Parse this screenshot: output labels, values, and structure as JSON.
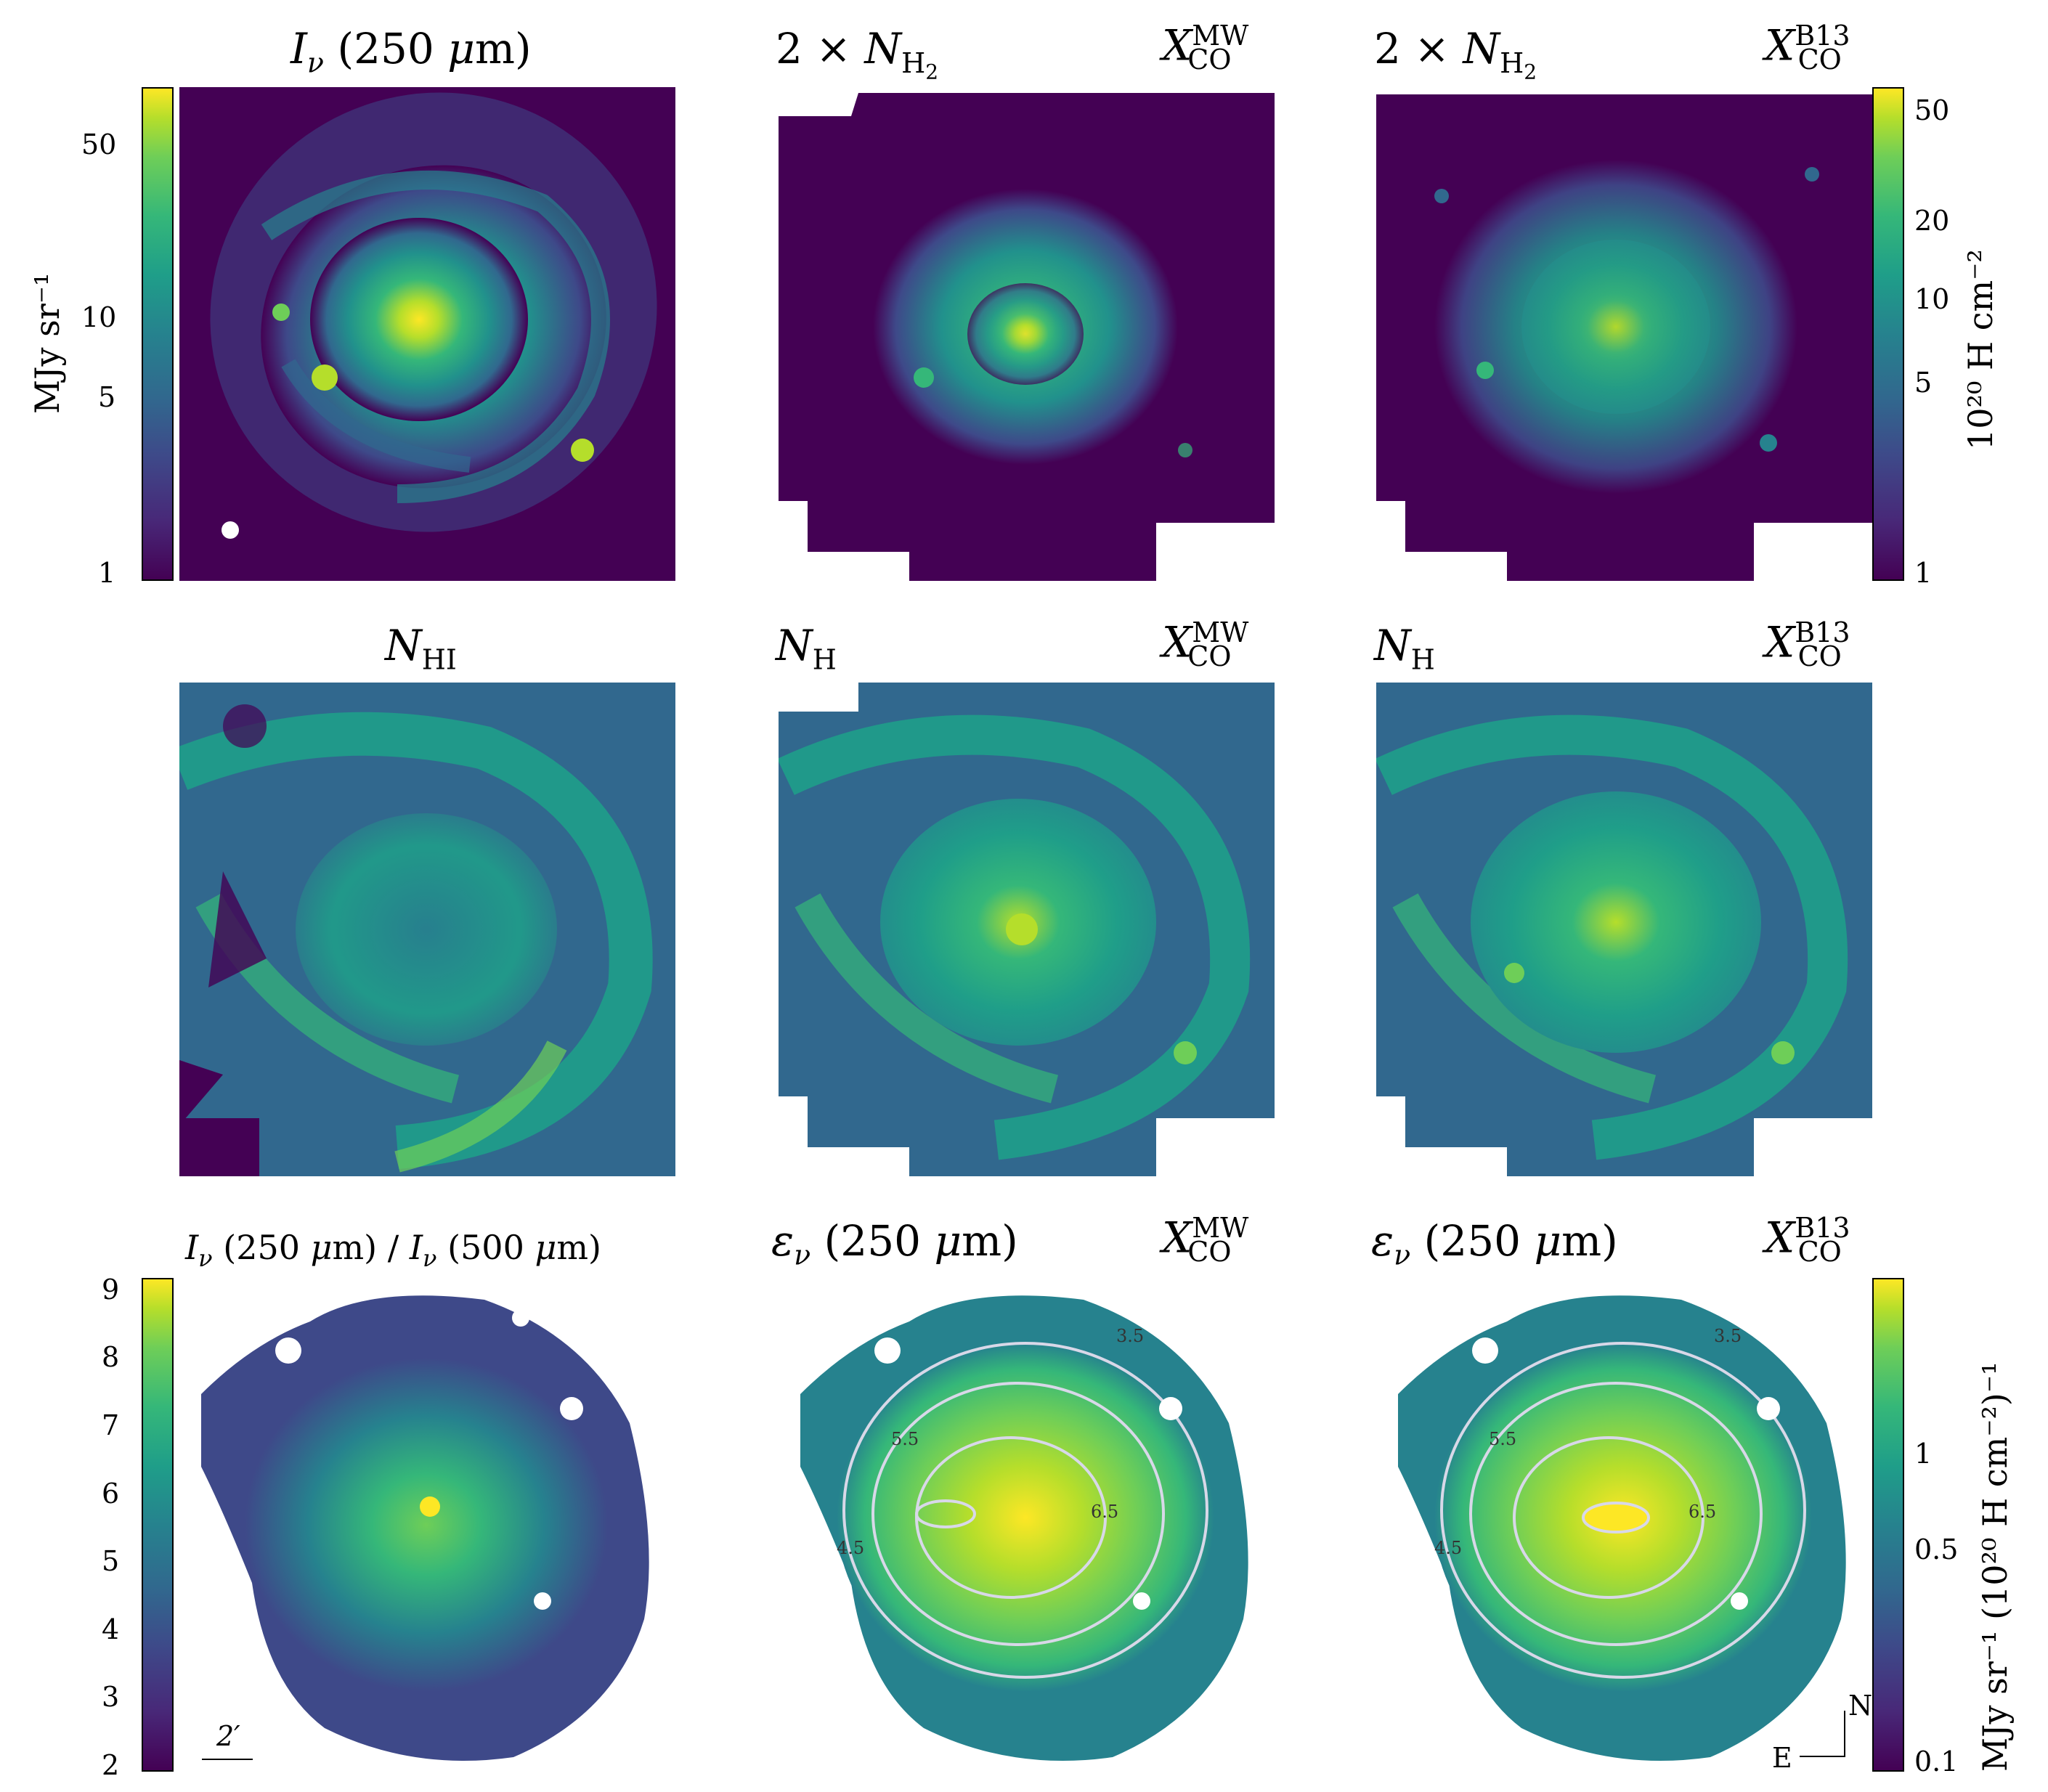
{
  "colors": {
    "viridis": [
      "#440154",
      "#482878",
      "#3e4989",
      "#31688e",
      "#26828e",
      "#1f9e89",
      "#35b779",
      "#6ece58",
      "#b5de2b",
      "#fde725"
    ],
    "background": "#440154",
    "contour": "#d8d8e8"
  },
  "row1": {
    "p1_title": "Iν (250 μm)",
    "p2_title": "2 × N",
    "p2_sub": "H₂",
    "p2_model": "X",
    "p2_model_sup": "MW",
    "p2_model_sub": "CO",
    "p3_title": "2 × N",
    "p3_sub": "H₂",
    "p3_model": "X",
    "p3_model_sup": "B13",
    "p3_model_sub": "CO"
  },
  "row2": {
    "p1_title": "N",
    "p1_sub": "HI",
    "p2_title": "N",
    "p2_sub": "H",
    "p2_model_sup": "MW",
    "p3_title": "N",
    "p3_sub": "H",
    "p3_model_sup": "B13"
  },
  "row3": {
    "p1_title": "Iν (250 μm) / Iν (500 μm)",
    "p2_title": "εν (250 μm)",
    "p3_title": "εν (250 μm)",
    "scale_bar": "2′",
    "compass_n": "N",
    "compass_e": "E"
  },
  "cbar_left_top": {
    "label": "MJy sr⁻¹",
    "ticks": [
      "50",
      "10",
      "5",
      "1"
    ]
  },
  "cbar_right_top": {
    "label": "10²⁰ H cm⁻²",
    "ticks": [
      "50",
      "20",
      "10",
      "5",
      "1"
    ]
  },
  "cbar_left_bottom": {
    "ticks": [
      "9",
      "8",
      "7",
      "6",
      "5",
      "4",
      "3",
      "2"
    ]
  },
  "cbar_right_bottom": {
    "label": "MJy sr⁻¹ (10²⁰ H cm⁻²)⁻¹",
    "ticks": [
      "1",
      "0.5",
      "0.1"
    ]
  },
  "contours": {
    "labels": [
      "3.5",
      "4.5",
      "5.5",
      "6.5",
      "3.5",
      "4.5",
      "5.5",
      "6.5"
    ]
  },
  "chart_data": {
    "type": "heatmap",
    "panels": [
      {
        "title": "Iν (250 μm)",
        "colorbar_range": [
          1,
          70
        ],
        "scale": "log",
        "unit": "MJy sr⁻¹"
      },
      {
        "title": "2 × N_H2",
        "model": "X_CO^MW",
        "scale": "log"
      },
      {
        "title": "2 × N_H2",
        "model": "X_CO^B13",
        "colorbar_range": [
          1,
          60
        ],
        "scale": "log",
        "unit": "10²⁰ H cm⁻²"
      },
      {
        "title": "N_HI",
        "scale": "log"
      },
      {
        "title": "N_H",
        "model": "X_CO^MW",
        "scale": "log"
      },
      {
        "title": "N_H",
        "model": "X_CO^B13",
        "scale": "log"
      },
      {
        "title": "Iν (250 μm) / Iν (500 μm)",
        "colorbar_range": [
          2,
          9.2
        ],
        "scale": "linear"
      },
      {
        "title": "εν (250 μm)",
        "model": "X_CO^MW",
        "contour_levels": [
          3.5,
          4.5,
          5.5,
          6.5
        ]
      },
      {
        "title": "εν (250 μm)",
        "model": "X_CO^B13",
        "contour_levels": [
          3.5,
          4.5,
          5.5,
          6.5
        ],
        "colorbar_range": [
          0.1,
          3
        ],
        "scale": "log",
        "unit": "MJy sr⁻¹ (10²⁰ H cm⁻²)⁻¹"
      }
    ]
  }
}
